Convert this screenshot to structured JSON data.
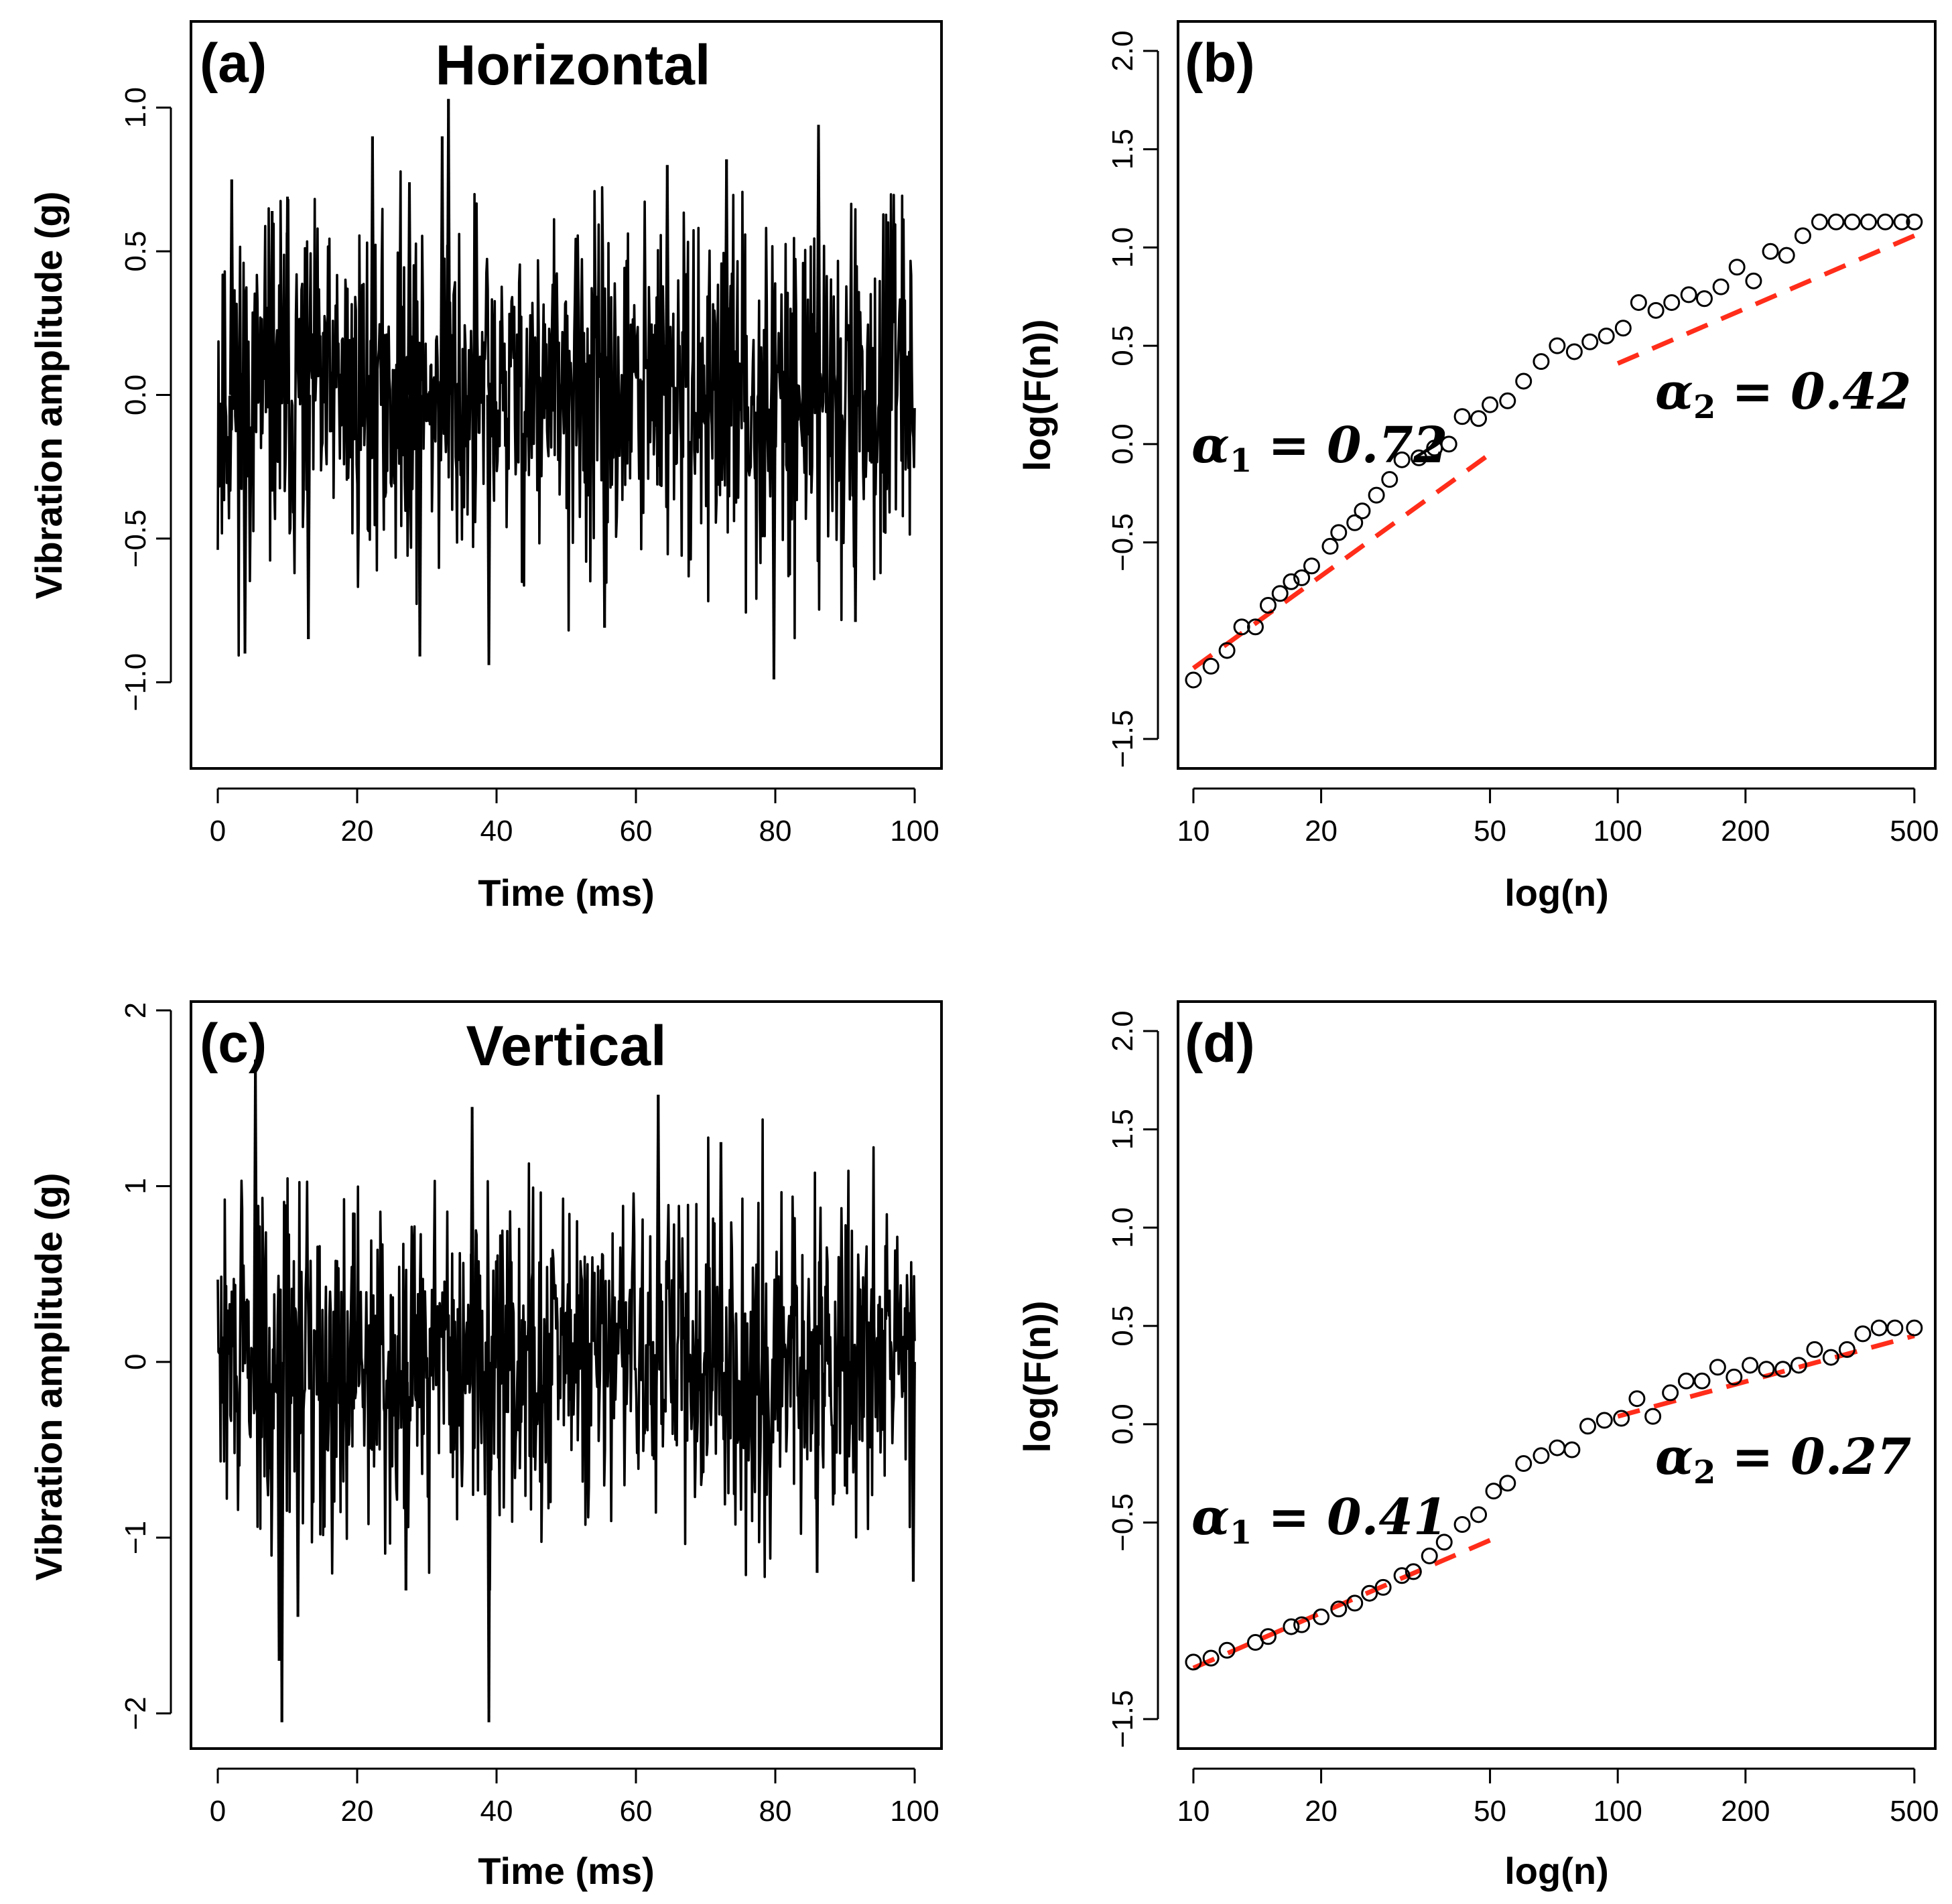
{
  "chart_data": [
    {
      "panel": "(a)",
      "type": "line",
      "title": "Horizontal",
      "xlabel": "Time (ms)",
      "ylabel": "Vibration amplitude (g)",
      "xlim": [
        0,
        100
      ],
      "ylim": [
        -1.3,
        1.3
      ],
      "xticks": [
        "0",
        "20",
        "40",
        "60",
        "80",
        "100"
      ],
      "yticks": [
        "-1.0",
        "-0.5",
        "0.0",
        "0.5",
        "1.0"
      ],
      "signal": {
        "samples": 1000,
        "std": 0.3,
        "min": -0.99,
        "max": 1.03,
        "seed": 11
      },
      "spikes": [
        {
          "t": 2.0,
          "v": 0.75
        },
        {
          "t": 3.9,
          "v": -0.9
        },
        {
          "t": 7.8,
          "v": 0.64
        },
        {
          "t": 10.0,
          "v": 0.69
        },
        {
          "t": 13.0,
          "v": -0.85
        },
        {
          "t": 22.2,
          "v": 0.9
        },
        {
          "t": 27.5,
          "v": 0.74
        },
        {
          "t": 29.0,
          "v": -0.91
        },
        {
          "t": 32.2,
          "v": 0.9
        },
        {
          "t": 33.1,
          "v": 1.03
        },
        {
          "t": 38.9,
          "v": -0.94
        },
        {
          "t": 55.5,
          "v": -0.81
        },
        {
          "t": 64.5,
          "v": 0.8
        },
        {
          "t": 73.0,
          "v": 0.82
        },
        {
          "t": 79.8,
          "v": -0.99
        },
        {
          "t": 86.2,
          "v": 0.94
        },
        {
          "t": 91.5,
          "v": -0.79
        }
      ]
    },
    {
      "panel": "(b)",
      "type": "scatter",
      "xlabel": "log(n)",
      "ylabel": "log(F(n))",
      "xscale": "log",
      "xlim": [
        9.2,
        560
      ],
      "ylim": [
        -1.65,
        2.15
      ],
      "xticks": [
        "10",
        "20",
        "50",
        "100",
        "200",
        "500"
      ],
      "yticks": [
        "-1.5",
        "-0.5",
        "0.0",
        "0.5",
        "1.0",
        "1.5",
        "2.0"
      ],
      "x": [
        10,
        11,
        12,
        13,
        14,
        15,
        16,
        17,
        18,
        19,
        21,
        22,
        24,
        25,
        27,
        29,
        31,
        34,
        37,
        40,
        43,
        47,
        50,
        55,
        60,
        66,
        72,
        79,
        86,
        94,
        103,
        112,
        123,
        134,
        147,
        160,
        175,
        191,
        209,
        229,
        250,
        273,
        299,
        327,
        357,
        390,
        427,
        467,
        500
      ],
      "y": [
        -1.2,
        -1.13,
        -1.05,
        -0.93,
        -0.93,
        -0.82,
        -0.76,
        -0.7,
        -0.68,
        -0.62,
        -0.52,
        -0.45,
        -0.4,
        -0.34,
        -0.26,
        -0.18,
        -0.08,
        -0.07,
        -0.02,
        0.0,
        0.14,
        0.13,
        0.2,
        0.22,
        0.32,
        0.42,
        0.5,
        0.47,
        0.52,
        0.55,
        0.59,
        0.72,
        0.68,
        0.72,
        0.76,
        0.74,
        0.8,
        0.9,
        0.83,
        0.98,
        0.96,
        1.06,
        1.13,
        1.13,
        1.13,
        1.13,
        1.13,
        1.13,
        1.13
      ],
      "fits": [
        {
          "x": [
            10,
            50
          ],
          "y": [
            -1.14,
            -0.05
          ]
        },
        {
          "x": [
            100,
            500
          ],
          "y": [
            0.41,
            1.06
          ]
        }
      ],
      "annotations": [
        {
          "symbol": "α",
          "sub": "1",
          "value": "= 0.72"
        },
        {
          "symbol": "α",
          "sub": "2",
          "value": "= 0.42"
        }
      ]
    },
    {
      "panel": "(c)",
      "type": "line",
      "title": "Vertical",
      "xlabel": "Time (ms)",
      "ylabel": "Vibration amplitude (g)",
      "xlim": [
        0,
        100
      ],
      "ylim": [
        -2.2,
        2.05
      ],
      "xticks": [
        "0",
        "20",
        "40",
        "60",
        "80",
        "100"
      ],
      "yticks": [
        "-2",
        "-1",
        "0",
        "1",
        "2"
      ],
      "signal": {
        "samples": 1000,
        "std": 0.48,
        "min": -2.05,
        "max": 1.72,
        "seed": 29
      },
      "spikes": [
        {
          "t": 5.4,
          "v": 1.72
        },
        {
          "t": 8.8,
          "v": -1.7
        },
        {
          "t": 9.2,
          "v": -2.05
        },
        {
          "t": 11.5,
          "v": -1.45
        },
        {
          "t": 27.0,
          "v": -1.3
        },
        {
          "t": 36.5,
          "v": 1.45
        },
        {
          "t": 38.9,
          "v": -2.05
        },
        {
          "t": 63.2,
          "v": 1.52
        },
        {
          "t": 72.2,
          "v": 1.25
        },
        {
          "t": 86.0,
          "v": -1.2
        },
        {
          "t": 99.8,
          "v": -1.25
        }
      ]
    },
    {
      "panel": "(d)",
      "type": "scatter",
      "xlabel": "log(n)",
      "ylabel": "log(F(n))",
      "xscale": "log",
      "xlim": [
        9.2,
        560
      ],
      "ylim": [
        -1.65,
        2.15
      ],
      "xticks": [
        "10",
        "20",
        "50",
        "100",
        "200",
        "500"
      ],
      "yticks": [
        "-1.5",
        "-0.5",
        "0.0",
        "0.5",
        "1.0",
        "1.5",
        "2.0"
      ],
      "x": [
        10,
        11,
        12,
        14,
        15,
        17,
        18,
        20,
        22,
        24,
        26,
        28,
        31,
        33,
        36,
        39,
        43,
        47,
        51,
        55,
        60,
        66,
        72,
        78,
        85,
        93,
        102,
        111,
        121,
        133,
        145,
        158,
        172,
        188,
        205,
        224,
        245,
        267,
        291,
        318,
        347,
        378,
        413,
        450,
        500
      ],
      "y": [
        -1.21,
        -1.19,
        -1.15,
        -1.11,
        -1.08,
        -1.03,
        -1.02,
        -0.98,
        -0.94,
        -0.91,
        -0.86,
        -0.83,
        -0.77,
        -0.75,
        -0.67,
        -0.6,
        -0.51,
        -0.46,
        -0.34,
        -0.3,
        -0.2,
        -0.16,
        -0.12,
        -0.13,
        -0.01,
        0.02,
        0.03,
        0.13,
        0.04,
        0.16,
        0.22,
        0.22,
        0.29,
        0.24,
        0.3,
        0.28,
        0.28,
        0.3,
        0.38,
        0.34,
        0.38,
        0.46,
        0.49,
        0.49,
        0.49
      ],
      "fits": [
        {
          "x": [
            10,
            50
          ],
          "y": [
            -1.24,
            -0.59
          ]
        },
        {
          "x": [
            100,
            500
          ],
          "y": [
            0.04,
            0.45
          ]
        }
      ],
      "annotations": [
        {
          "symbol": "α",
          "sub": "1",
          "value": "= 0.41"
        },
        {
          "symbol": "α",
          "sub": "2",
          "value": "= 0.27"
        }
      ]
    }
  ]
}
